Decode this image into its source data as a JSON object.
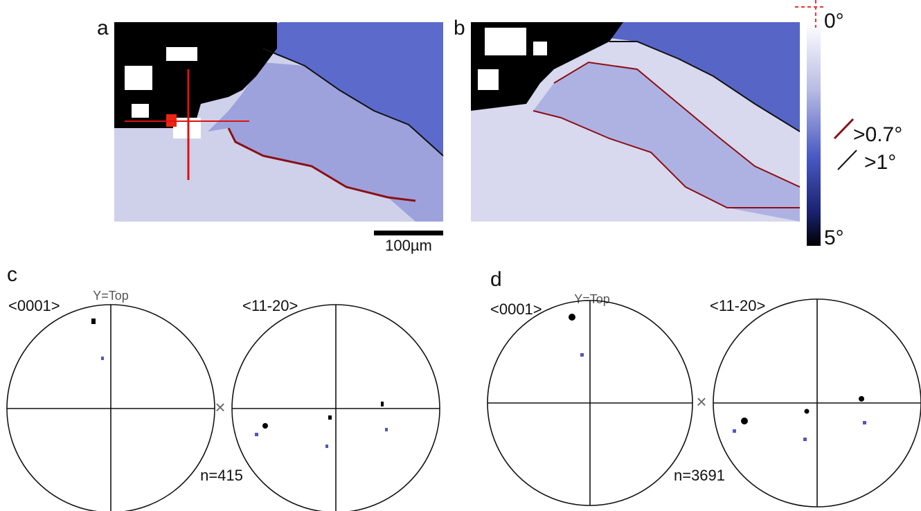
{
  "panels": {
    "a": {
      "label": "a"
    },
    "b": {
      "label": "b"
    },
    "c": {
      "label": "c",
      "left_title": "<0001>",
      "axis_note": "Y=Top",
      "right_title": "<11-20>",
      "count": "n=415"
    },
    "d": {
      "label": "d",
      "left_title": "<0001>",
      "axis_note": "Y=Top",
      "right_title": "<11-20>",
      "count": "n=3691"
    }
  },
  "colorbar": {
    "top": "0°",
    "bottom": "5°"
  },
  "legend": {
    "red_boundary": ">0.7°",
    "black_boundary": ">1°"
  },
  "scale_bar": "100µm"
}
